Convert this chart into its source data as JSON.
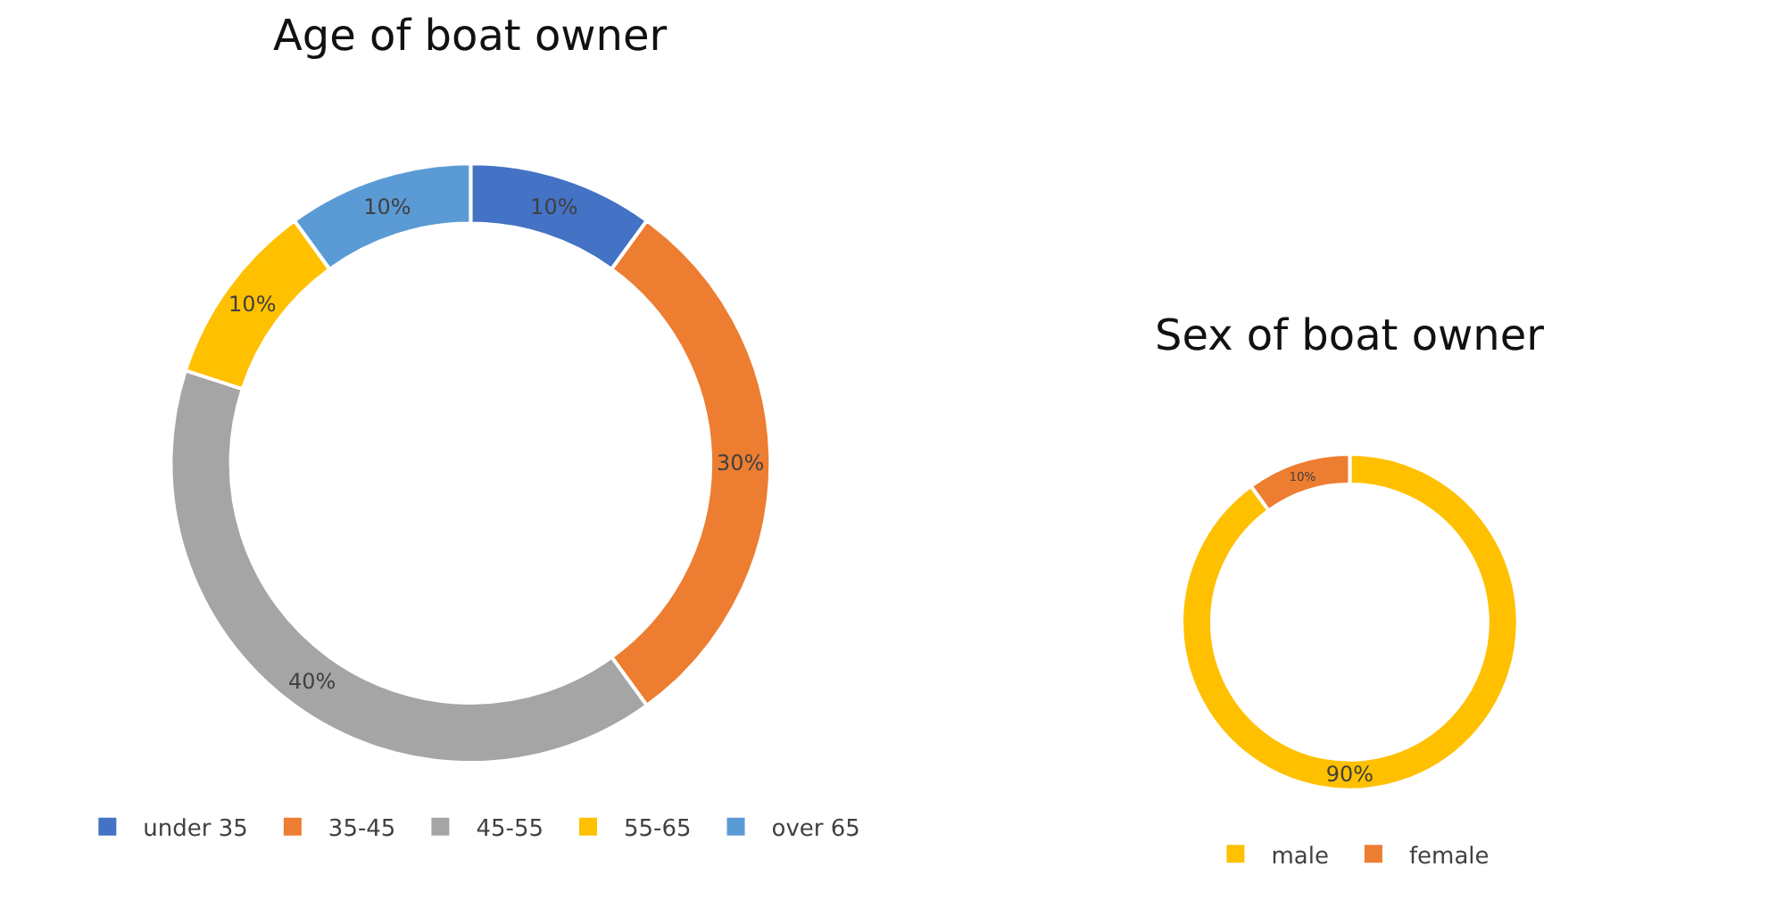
{
  "chart_data": [
    {
      "type": "donut",
      "title": "Age of boat owner",
      "categories": [
        "under 35",
        "35-45",
        "45-55",
        "55-65",
        "over 65"
      ],
      "values": [
        10,
        30,
        40,
        10,
        10
      ],
      "colors": [
        "#4472c4",
        "#ed7d31",
        "#a5a5a5",
        "#ffc000",
        "#5b9bd5"
      ],
      "value_labels": [
        "10%",
        "30%",
        "40%",
        "10%",
        "10%"
      ],
      "legend": "bottom"
    },
    {
      "type": "donut",
      "title": "Sex of boat owner",
      "categories": [
        "male",
        "female"
      ],
      "values": [
        90,
        10
      ],
      "colors": [
        "#ffc000",
        "#ed7d31"
      ],
      "value_labels": [
        "90%",
        "10%"
      ],
      "legend": "bottom"
    }
  ]
}
